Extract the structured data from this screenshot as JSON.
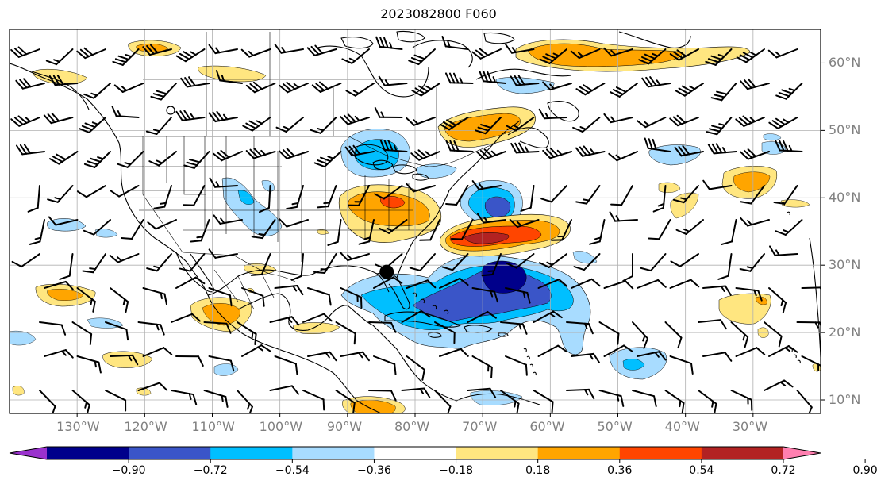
{
  "title": "2023082800 F060",
  "axes": {
    "lon_labels": [
      "130°W",
      "120°W",
      "110°W",
      "100°W",
      "90°W",
      "80°W",
      "70°W",
      "60°W",
      "50°W",
      "40°W",
      "30°W"
    ],
    "lat_labels": [
      "60°N",
      "50°N",
      "40°N",
      "30°N",
      "20°N",
      "10°N"
    ],
    "lon_range": [
      -140,
      -20
    ],
    "lat_range": [
      8,
      65
    ],
    "grid": true
  },
  "colorbar": {
    "labels": [
      "−0.90",
      "−0.72",
      "−0.54",
      "−0.36",
      "−0.18",
      "0.18",
      "0.36",
      "0.54",
      "0.72",
      "0.90"
    ],
    "levels": [
      -0.9,
      -0.72,
      -0.54,
      -0.36,
      -0.18,
      0.18,
      0.36,
      0.54,
      0.72,
      0.9
    ],
    "colors": [
      "#9a32cd",
      "#00008b",
      "#3a55c8",
      "#00bfff",
      "#a8dcff",
      "#ffffff",
      "#ffe680",
      "#ffa500",
      "#ff4500",
      "#b22222",
      "#ff7fb0"
    ],
    "extend": "both"
  },
  "marker": {
    "lon": -84.2,
    "lat": 29.0,
    "color": "#000000"
  },
  "map_elements": [
    "coastlines",
    "country-borders",
    "us-state-borders",
    "wind-barbs",
    "anomaly-shading"
  ]
}
